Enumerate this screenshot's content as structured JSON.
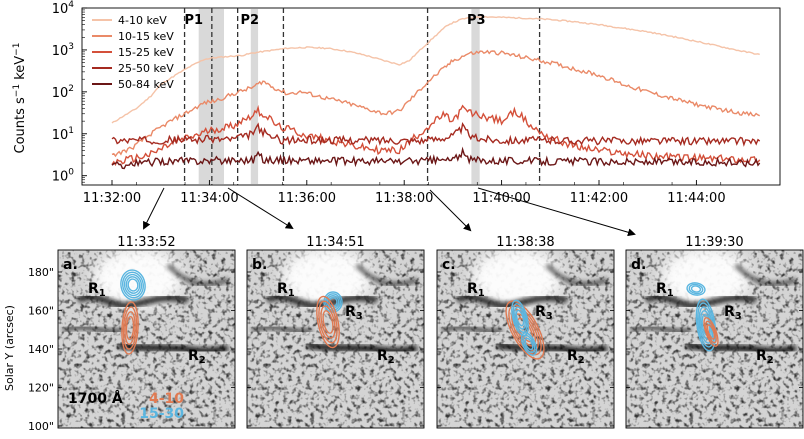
{
  "chart_data": [
    {
      "type": "line",
      "ylabel": "Counts s$^{-1}$ keV$^{-1}$",
      "ylabel_text": "Counts s",
      "ylabel_sup1": "−1",
      "ylabel_mid": " keV",
      "ylabel_sup2": "−1",
      "yscale": "log",
      "ylim": [
        0.6,
        10000
      ],
      "y_ticks": [
        {
          "base": "10",
          "exp": "0",
          "value": 1
        },
        {
          "base": "10",
          "exp": "1",
          "value": 10
        },
        {
          "base": "10",
          "exp": "2",
          "value": 100
        },
        {
          "base": "10",
          "exp": "3",
          "value": 1000
        },
        {
          "base": "10",
          "exp": "4",
          "value": 10000
        }
      ],
      "xlim_minutes": [
        0,
        13.3
      ],
      "x_ticks": [
        {
          "label": "11:32:00",
          "minute": 0
        },
        {
          "label": "11:34:00",
          "minute": 2
        },
        {
          "label": "11:36:00",
          "minute": 4
        },
        {
          "label": "11:38:00",
          "minute": 6
        },
        {
          "label": "11:40:00",
          "minute": 8
        },
        {
          "label": "11:42:00",
          "minute": 10
        },
        {
          "label": "11:44:00",
          "minute": 12
        }
      ],
      "series": [
        {
          "name": "4-10 keV",
          "color": "#f5c3a8",
          "points": [
            [
              0.0,
              18
            ],
            [
              0.2,
              25
            ],
            [
              0.5,
              40
            ],
            [
              0.8,
              80
            ],
            [
              1.0,
              150
            ],
            [
              1.3,
              250
            ],
            [
              1.6,
              400
            ],
            [
              1.9,
              600
            ],
            [
              2.1,
              650
            ],
            [
              2.4,
              700
            ],
            [
              2.7,
              750
            ],
            [
              2.9,
              850
            ],
            [
              3.2,
              950
            ],
            [
              3.6,
              1100
            ],
            [
              4.0,
              1150
            ],
            [
              4.4,
              1100
            ],
            [
              4.8,
              950
            ],
            [
              5.2,
              750
            ],
            [
              5.6,
              550
            ],
            [
              5.9,
              450
            ],
            [
              6.1,
              550
            ],
            [
              6.4,
              1200
            ],
            [
              6.7,
              2500
            ],
            [
              6.9,
              4000
            ],
            [
              7.2,
              5500
            ],
            [
              7.6,
              6200
            ],
            [
              8.0,
              6000
            ],
            [
              8.5,
              5700
            ],
            [
              9.0,
              5300
            ],
            [
              9.5,
              4700
            ],
            [
              10.0,
              4000
            ],
            [
              10.5,
              3300
            ],
            [
              11.0,
              2700
            ],
            [
              11.5,
              2100
            ],
            [
              12.0,
              1600
            ],
            [
              12.5,
              1200
            ],
            [
              13.0,
              900
            ],
            [
              13.3,
              780
            ]
          ]
        },
        {
          "name": "10-15 keV",
          "color": "#ea8a68",
          "points": [
            [
              0.0,
              3
            ],
            [
              0.4,
              4.5
            ],
            [
              0.8,
              10
            ],
            [
              1.2,
              20
            ],
            [
              1.6,
              35
            ],
            [
              1.9,
              55
            ],
            [
              2.1,
              60
            ],
            [
              2.5,
              90
            ],
            [
              2.9,
              130
            ],
            [
              3.1,
              180
            ],
            [
              3.3,
              130
            ],
            [
              3.6,
              90
            ],
            [
              3.9,
              100
            ],
            [
              4.3,
              75
            ],
            [
              4.8,
              55
            ],
            [
              5.2,
              40
            ],
            [
              5.6,
              30
            ],
            [
              5.9,
              35
            ],
            [
              6.2,
              80
            ],
            [
              6.5,
              180
            ],
            [
              6.8,
              350
            ],
            [
              7.0,
              550
            ],
            [
              7.3,
              800
            ],
            [
              7.6,
              900
            ],
            [
              8.0,
              850
            ],
            [
              8.5,
              650
            ],
            [
              9.0,
              500
            ],
            [
              9.5,
              350
            ],
            [
              10.0,
              250
            ],
            [
              10.5,
              150
            ],
            [
              11.0,
              100
            ],
            [
              11.5,
              70
            ],
            [
              12.0,
              50
            ],
            [
              12.5,
              38
            ],
            [
              13.0,
              30
            ],
            [
              13.3,
              27
            ]
          ]
        },
        {
          "name": "15-25 keV",
          "color": "#d4503a",
          "points": [
            [
              0.0,
              2
            ],
            [
              0.4,
              2.5
            ],
            [
              0.8,
              3.2
            ],
            [
              1.1,
              5
            ],
            [
              1.4,
              7
            ],
            [
              1.7,
              9
            ],
            [
              2.0,
              12
            ],
            [
              2.3,
              14
            ],
            [
              2.5,
              16
            ],
            [
              2.8,
              25
            ],
            [
              3.0,
              35
            ],
            [
              3.2,
              25
            ],
            [
              3.4,
              15
            ],
            [
              3.7,
              12
            ],
            [
              4.0,
              9
            ],
            [
              4.5,
              7
            ],
            [
              5.0,
              5
            ],
            [
              5.5,
              4
            ],
            [
              5.9,
              4
            ],
            [
              6.2,
              8
            ],
            [
              6.5,
              15
            ],
            [
              6.8,
              28
            ],
            [
              7.0,
              20
            ],
            [
              7.2,
              40
            ],
            [
              7.4,
              30
            ],
            [
              7.7,
              25
            ],
            [
              8.0,
              20
            ],
            [
              8.3,
              35
            ],
            [
              8.6,
              15
            ],
            [
              9.0,
              8
            ],
            [
              9.5,
              5
            ],
            [
              10.0,
              4
            ],
            [
              11.0,
              3
            ],
            [
              12.0,
              2.6
            ],
            [
              13.3,
              2.4
            ]
          ]
        },
        {
          "name": "25-50 keV",
          "color": "#a52a20",
          "points": [
            [
              0.0,
              7
            ],
            [
              1.0,
              7
            ],
            [
              2.0,
              7.5
            ],
            [
              2.5,
              7.5
            ],
            [
              2.8,
              9
            ],
            [
              3.0,
              14
            ],
            [
              3.2,
              9
            ],
            [
              3.5,
              7
            ],
            [
              4.5,
              7
            ],
            [
              5.5,
              7
            ],
            [
              6.5,
              7
            ],
            [
              7.0,
              9
            ],
            [
              7.2,
              14
            ],
            [
              7.4,
              8
            ],
            [
              8.0,
              7
            ],
            [
              9.0,
              7
            ],
            [
              10.0,
              6.8
            ],
            [
              11.0,
              6.8
            ],
            [
              12.0,
              6.7
            ],
            [
              13.3,
              6.7
            ]
          ]
        },
        {
          "name": "50-84 keV",
          "color": "#6b1616",
          "points": [
            [
              0.0,
              1.7
            ],
            [
              1.0,
              2.2
            ],
            [
              2.0,
              2.3
            ],
            [
              2.9,
              2.4
            ],
            [
              3.0,
              3.5
            ],
            [
              3.1,
              2.4
            ],
            [
              4.0,
              2.3
            ],
            [
              5.0,
              2.2
            ],
            [
              6.0,
              2.2
            ],
            [
              7.0,
              2.4
            ],
            [
              7.2,
              3.5
            ],
            [
              7.3,
              2.4
            ],
            [
              8.0,
              2.3
            ],
            [
              9.0,
              2.2
            ],
            [
              10.0,
              2.2
            ],
            [
              11.0,
              2.1
            ],
            [
              12.0,
              2.1
            ],
            [
              13.3,
              2.0
            ]
          ]
        }
      ],
      "periods": [
        {
          "label": "P1",
          "start_minute": 1.78,
          "end_minute": 2.3
        },
        {
          "label": "P2",
          "start_minute": 2.85,
          "end_minute": 3.0
        },
        {
          "label": "P3",
          "start_minute": 7.38,
          "end_minute": 7.55
        }
      ],
      "image_times_minutes": [
        1.87,
        2.85,
        6.63,
        7.5
      ],
      "dashed_lines_minutes": [
        1.49,
        2.05,
        2.58,
        3.52,
        6.48,
        8.78
      ]
    }
  ],
  "panels": [
    {
      "letter": "a.",
      "time": "11:33:52"
    },
    {
      "letter": "b.",
      "time": "11:34:51"
    },
    {
      "letter": "c.",
      "time": "11:38:38"
    },
    {
      "letter": "d.",
      "time": "11:39:30"
    }
  ],
  "panel_axes": {
    "ylabel": "Solar Y (arcsec)",
    "y_ticks": [
      "180\"",
      "160\"",
      "140\"",
      "120\"",
      "100\""
    ]
  },
  "region_labels": {
    "r1_base": "R",
    "r1_sub": "1",
    "r2_base": "R",
    "r2_sub": "2",
    "r3_base": "R",
    "r3_sub": "3"
  },
  "annotations": {
    "wavelength": "1700 Å",
    "contour_low": "4-10",
    "contour_high": "15-30",
    "contour_low_color": "#e07a52",
    "contour_high_color": "#5bb6e0"
  }
}
